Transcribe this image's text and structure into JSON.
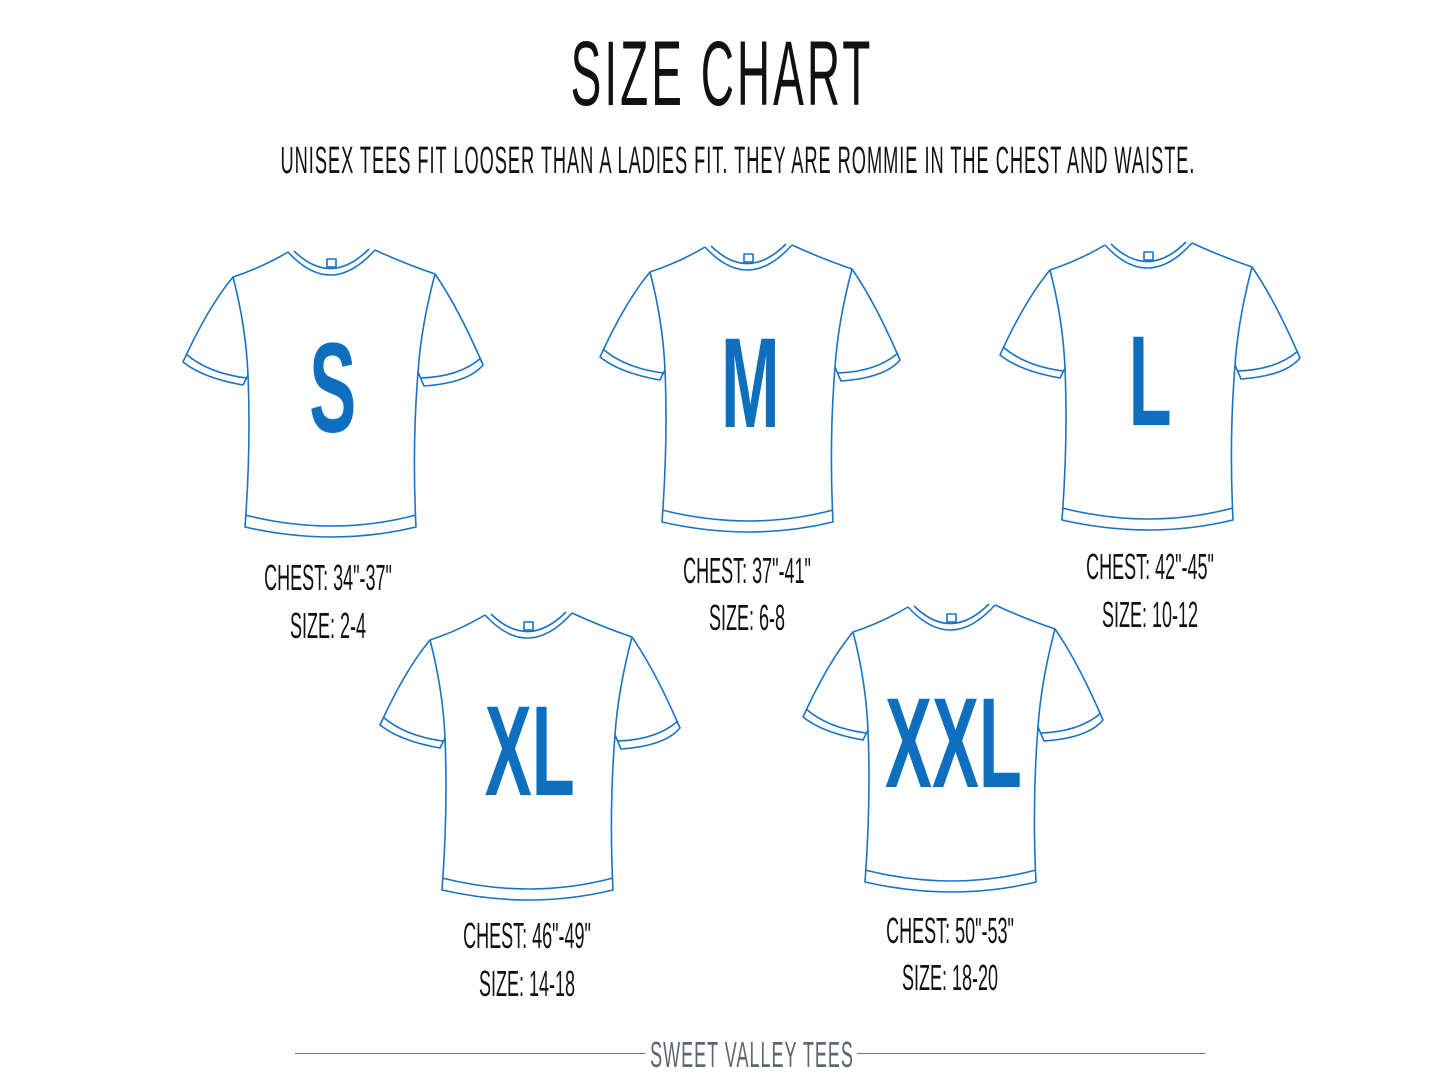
{
  "title": "SIZE CHART",
  "subtitle": "UNISEX TEES FIT LOOSER THAN A LADIES FIT.  THEY ARE ROMMIE IN THE CHEST AND WAISTE.",
  "colors": {
    "shirt_outline": "#1a73c4",
    "size_letter": "#0f6fbf",
    "text": "#111111",
    "footer": "#5e6670"
  },
  "sizes": [
    {
      "letter": "S",
      "chest": "CHEST: 34\"-37\"",
      "size": "SIZE: 2-4"
    },
    {
      "letter": "M",
      "chest": "CHEST: 37\"-41\"",
      "size": "SIZE: 6-8"
    },
    {
      "letter": "L",
      "chest": "CHEST: 42\"-45\"",
      "size": "SIZE: 10-12"
    },
    {
      "letter": "XL",
      "chest": "CHEST: 46\"-49\"",
      "size": "SIZE: 14-18"
    },
    {
      "letter": "XXL",
      "chest": "CHEST: 50\"-53\"",
      "size": "SIZE: 18-20"
    }
  ],
  "footer": {
    "brand": "SWEET VALLEY TEES"
  }
}
